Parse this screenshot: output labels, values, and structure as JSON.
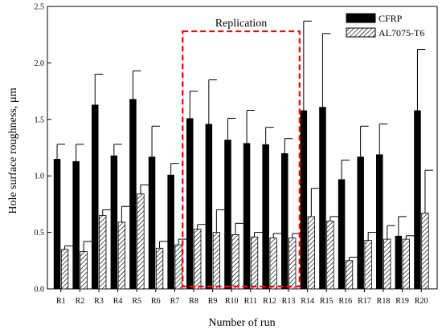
{
  "chart_data": {
    "type": "bar",
    "xlabel": "Number of run",
    "ylabel": "Hole surface roughness, µm",
    "ylim": [
      0,
      2.5
    ],
    "yticks": [
      "0.0",
      "0.5",
      "1.0",
      "1.5",
      "2.0",
      "2.5"
    ],
    "grid": false,
    "legend_position": "top-right",
    "categories": [
      "R1",
      "R2",
      "R3",
      "R4",
      "R5",
      "R6",
      "R7",
      "R8",
      "R9",
      "R10",
      "R11",
      "R12",
      "R13",
      "R14",
      "R15",
      "R16",
      "R17",
      "R18",
      "R19",
      "R20"
    ],
    "series": [
      {
        "name": "CFRP",
        "color": "#000000",
        "pattern": "solid",
        "values": [
          1.15,
          1.13,
          1.63,
          1.18,
          1.68,
          1.17,
          1.01,
          1.51,
          1.46,
          1.32,
          1.29,
          1.28,
          1.2,
          1.58,
          1.61,
          0.97,
          1.17,
          1.19,
          0.47,
          1.58
        ],
        "errors": [
          0.13,
          0.15,
          0.27,
          0.1,
          0.25,
          0.27,
          0.1,
          0.24,
          0.39,
          0.19,
          0.29,
          0.15,
          0.13,
          0.79,
          0.65,
          0.17,
          0.27,
          0.27,
          0.17,
          0.54
        ]
      },
      {
        "name": "AL7075-T6",
        "color": "#ffffff",
        "pattern": "hatched",
        "values": [
          0.35,
          0.33,
          0.65,
          0.59,
          0.84,
          0.36,
          0.39,
          0.53,
          0.5,
          0.48,
          0.46,
          0.45,
          0.45,
          0.64,
          0.6,
          0.25,
          0.43,
          0.44,
          0.44,
          0.67
        ],
        "errors": [
          0.03,
          0.09,
          0.05,
          0.14,
          0.08,
          0.06,
          0.05,
          0.04,
          0.2,
          0.1,
          0.04,
          0.04,
          0.04,
          0.25,
          0.04,
          0.03,
          0.07,
          0.12,
          0.03,
          0.38
        ]
      }
    ],
    "annotation": {
      "label": "Replication",
      "range": [
        "R8",
        "R13"
      ],
      "color": "#ff0000",
      "style": "dashed-box"
    }
  }
}
